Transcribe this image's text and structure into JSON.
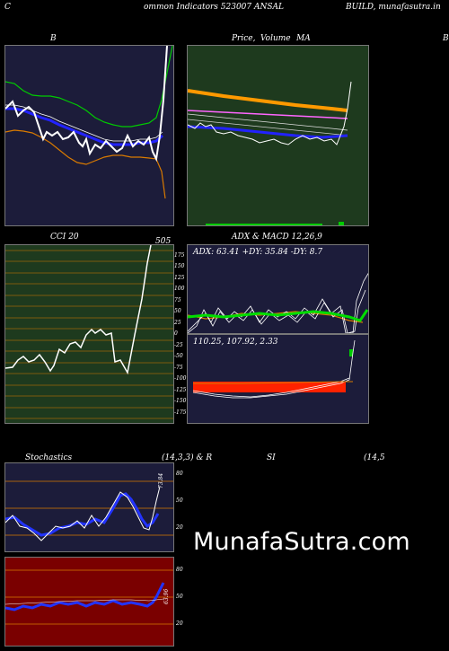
{
  "header": {
    "left": "C",
    "center": "ommon Indicators 523007 ANSAL",
    "right": "BUILD, munafasutra.in"
  },
  "bollinger": {
    "title": "B"
  },
  "price": {
    "title_a": "Price,",
    "title_b": "Volume",
    "title_c": "MA",
    "right_marker": "B"
  },
  "cci": {
    "title": "CCI 20",
    "value": "505",
    "ticks": [
      "175",
      "150",
      "125",
      "100",
      "75",
      "50",
      "25",
      "0",
      "-25",
      "-50",
      "-75",
      "-100",
      "-125",
      "-150",
      "-175"
    ]
  },
  "adx": {
    "title": "ADX & MACD 12,26,9",
    "values": "ADX: 63.41 +DY: 35.84 -DY: 8.7"
  },
  "macd": {
    "values": "110.25, 107.92, 2.33"
  },
  "stoch": {
    "title_a": "Stochastics",
    "title_b": "(14,3,3) & R",
    "title_c": "SI",
    "title_d": "(14,5",
    "value": "73.84",
    "ticks": [
      "80",
      "50",
      "20"
    ]
  },
  "rsi": {
    "value": "63.96",
    "ticks": [
      "80",
      "50",
      "20"
    ]
  },
  "brand": "MunafaSutra.com",
  "colors": {
    "panel_navy": "#1c1c3a",
    "panel_green": "#1e3a1e",
    "panel_red": "#7a0000",
    "orange": "#d97a00",
    "green_line": "#00cc00",
    "blue_line": "#2222ff"
  }
}
